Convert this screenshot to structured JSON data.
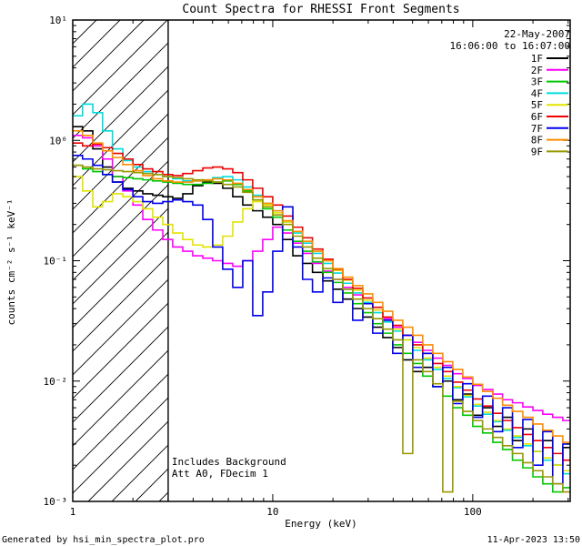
{
  "footer": {
    "left": "Generated by hsi_min_spectra_plot.pro",
    "right": "11-Apr-2023 13:50"
  },
  "chart_data": {
    "type": "line",
    "title": "Count Spectra for RHESSI Front Segments",
    "xlabel": "Energy (keV)",
    "ylabel": "counts cm⁻² s⁻¹ keV⁻¹",
    "xscale": "log",
    "yscale": "log",
    "xlim": [
      1,
      307
    ],
    "ylim": [
      0.001,
      10
    ],
    "grid": false,
    "x_ticks": [
      {
        "value": 1,
        "label": "1"
      },
      {
        "value": 10,
        "label": "10"
      },
      {
        "value": 100,
        "label": "100"
      }
    ],
    "y_ticks": [
      {
        "value": 10,
        "label": "10¹"
      },
      {
        "value": 1,
        "label": "10⁰"
      },
      {
        "value": 0.1,
        "label": "10⁻¹"
      },
      {
        "value": 0.01,
        "label": "10⁻²"
      },
      {
        "value": 0.001,
        "label": "10⁻³"
      }
    ],
    "legend": {
      "position": "top-right",
      "date": "22-May-2007",
      "time_range": "16:06:00 to 16:07:00"
    },
    "annotations": [
      "Includes Background",
      "Att A0, FDecim 1"
    ],
    "hatch_region": {
      "x_start": 1,
      "x_end": 3
    },
    "energies": [
      1.0,
      1.12,
      1.26,
      1.41,
      1.58,
      1.78,
      2.0,
      2.24,
      2.51,
      2.82,
      3.16,
      3.55,
      3.98,
      4.47,
      5.01,
      5.62,
      6.31,
      7.08,
      7.94,
      8.91,
      10.0,
      11.2,
      12.6,
      14.1,
      15.8,
      17.8,
      20.0,
      22.4,
      25.1,
      28.2,
      31.6,
      35.5,
      39.8,
      44.7,
      50.1,
      56.2,
      63.1,
      70.8,
      79.4,
      89.1,
      100,
      112,
      126,
      141,
      158,
      178,
      200,
      224,
      251,
      282,
      316
    ],
    "series": [
      {
        "name": "1F",
        "color": "#000000",
        "values": [
          1.3,
          1.2,
          0.85,
          0.6,
          0.45,
          0.4,
          0.38,
          0.36,
          0.35,
          0.34,
          0.33,
          0.36,
          0.42,
          0.45,
          0.44,
          0.4,
          0.34,
          0.29,
          0.26,
          0.23,
          0.2,
          0.15,
          0.11,
          0.095,
          0.08,
          0.068,
          0.058,
          0.048,
          0.04,
          0.034,
          0.028,
          0.023,
          0.019,
          0.015,
          0.012,
          0.013,
          0.009,
          0.01,
          0.007,
          0.0078,
          0.0052,
          0.006,
          0.0042,
          0.005,
          0.0032,
          0.004,
          0.0026,
          0.0032,
          0.002,
          0.0028,
          0.0022
        ]
      },
      {
        "name": "2F",
        "color": "#ff00ff",
        "values": [
          1.1,
          1.05,
          0.9,
          0.7,
          0.5,
          0.38,
          0.29,
          0.22,
          0.18,
          0.15,
          0.13,
          0.12,
          0.11,
          0.105,
          0.1,
          0.095,
          0.09,
          0.1,
          0.12,
          0.15,
          0.19,
          0.17,
          0.14,
          0.115,
          0.095,
          0.082,
          0.07,
          0.06,
          0.052,
          0.045,
          0.039,
          0.033,
          0.028,
          0.024,
          0.021,
          0.018,
          0.0155,
          0.0135,
          0.0115,
          0.0105,
          0.0092,
          0.0085,
          0.0078,
          0.007,
          0.0066,
          0.0061,
          0.0057,
          0.0053,
          0.005,
          0.0047,
          0.0044
        ]
      },
      {
        "name": "3F",
        "color": "#00c800",
        "values": [
          0.62,
          0.58,
          0.55,
          0.52,
          0.5,
          0.49,
          0.48,
          0.47,
          0.46,
          0.45,
          0.44,
          0.43,
          0.43,
          0.44,
          0.45,
          0.46,
          0.43,
          0.38,
          0.32,
          0.27,
          0.23,
          0.18,
          0.145,
          0.12,
          0.098,
          0.08,
          0.066,
          0.054,
          0.044,
          0.037,
          0.03,
          0.025,
          0.02,
          0.017,
          0.014,
          0.011,
          0.009,
          0.0075,
          0.006,
          0.0052,
          0.0042,
          0.0037,
          0.0031,
          0.0027,
          0.0022,
          0.0019,
          0.0016,
          0.0014,
          0.0012,
          0.0013,
          0.0011
        ]
      },
      {
        "name": "4F",
        "color": "#00dcdc",
        "values": [
          1.6,
          2.0,
          1.7,
          1.2,
          0.85,
          0.68,
          0.6,
          0.55,
          0.52,
          0.5,
          0.48,
          0.46,
          0.46,
          0.47,
          0.49,
          0.5,
          0.47,
          0.41,
          0.35,
          0.3,
          0.26,
          0.21,
          0.17,
          0.14,
          0.115,
          0.095,
          0.079,
          0.065,
          0.054,
          0.045,
          0.037,
          0.031,
          0.026,
          0.022,
          0.018,
          0.015,
          0.0125,
          0.0105,
          0.0088,
          0.0074,
          0.0062,
          0.0053,
          0.0046,
          0.0039,
          0.0034,
          0.0029,
          0.0026,
          0.0022,
          0.002,
          0.0017,
          0.0015
        ]
      },
      {
        "name": "5F",
        "color": "#e3e300",
        "values": [
          0.5,
          0.38,
          0.28,
          0.31,
          0.36,
          0.34,
          0.31,
          0.27,
          0.23,
          0.2,
          0.17,
          0.15,
          0.135,
          0.13,
          0.135,
          0.16,
          0.21,
          0.27,
          0.31,
          0.29,
          0.25,
          0.21,
          0.175,
          0.145,
          0.12,
          0.1,
          0.083,
          0.069,
          0.057,
          0.047,
          0.039,
          0.032,
          0.027,
          0.022,
          0.019,
          0.0155,
          0.013,
          0.011,
          0.009,
          0.0076,
          0.0064,
          0.0055,
          0.0047,
          0.004,
          0.0035,
          0.003,
          0.0026,
          0.0023,
          0.002,
          0.0018,
          0.0016
        ]
      },
      {
        "name": "6F",
        "color": "#ee0000",
        "values": [
          0.95,
          0.9,
          0.93,
          0.87,
          0.78,
          0.7,
          0.63,
          0.58,
          0.55,
          0.52,
          0.51,
          0.53,
          0.56,
          0.59,
          0.6,
          0.58,
          0.54,
          0.47,
          0.4,
          0.34,
          0.29,
          0.235,
          0.19,
          0.155,
          0.125,
          0.103,
          0.085,
          0.07,
          0.059,
          0.049,
          0.041,
          0.034,
          0.029,
          0.024,
          0.02,
          0.017,
          0.014,
          0.012,
          0.0098,
          0.0084,
          0.0071,
          0.0062,
          0.0054,
          0.0047,
          0.0041,
          0.0036,
          0.0032,
          0.0028,
          0.0025,
          0.0022,
          0.002
        ]
      },
      {
        "name": "7F",
        "color": "#0000ee",
        "values": [
          0.75,
          0.7,
          0.62,
          0.52,
          0.45,
          0.39,
          0.34,
          0.31,
          0.3,
          0.31,
          0.32,
          0.31,
          0.29,
          0.22,
          0.13,
          0.085,
          0.06,
          0.1,
          0.035,
          0.055,
          0.12,
          0.28,
          0.13,
          0.07,
          0.055,
          0.072,
          0.045,
          0.058,
          0.032,
          0.044,
          0.025,
          0.032,
          0.017,
          0.024,
          0.013,
          0.017,
          0.009,
          0.013,
          0.0065,
          0.0095,
          0.005,
          0.0075,
          0.0038,
          0.006,
          0.0028,
          0.0048,
          0.002,
          0.0038,
          0.0014,
          0.003,
          0.0018
        ]
      },
      {
        "name": "8F",
        "color": "#ff8c00",
        "values": [
          1.2,
          1.1,
          0.95,
          0.82,
          0.72,
          0.63,
          0.56,
          0.51,
          0.48,
          0.46,
          0.45,
          0.45,
          0.46,
          0.47,
          0.48,
          0.47,
          0.44,
          0.39,
          0.34,
          0.3,
          0.26,
          0.215,
          0.175,
          0.145,
          0.12,
          0.1,
          0.086,
          0.073,
          0.062,
          0.053,
          0.045,
          0.038,
          0.032,
          0.028,
          0.024,
          0.02,
          0.017,
          0.0145,
          0.0125,
          0.0108,
          0.0094,
          0.0082,
          0.0072,
          0.0063,
          0.0056,
          0.005,
          0.0044,
          0.0039,
          0.0035,
          0.0031,
          0.0028
        ]
      },
      {
        "name": "9F",
        "color": "#989800",
        "values": [
          0.62,
          0.6,
          0.58,
          0.57,
          0.56,
          0.55,
          0.54,
          0.53,
          0.52,
          0.5,
          0.49,
          0.48,
          0.47,
          0.46,
          0.45,
          0.43,
          0.41,
          0.37,
          0.32,
          0.28,
          0.24,
          0.2,
          0.16,
          0.13,
          0.105,
          0.086,
          0.07,
          0.058,
          0.048,
          0.04,
          0.033,
          0.027,
          0.022,
          0.0025,
          0.015,
          0.012,
          0.0095,
          0.0012,
          0.0068,
          0.0056,
          0.0047,
          0.004,
          0.0034,
          0.0029,
          0.0025,
          0.0021,
          0.0018,
          0.0016,
          0.0014,
          0.0012,
          0.0011
        ]
      }
    ]
  }
}
